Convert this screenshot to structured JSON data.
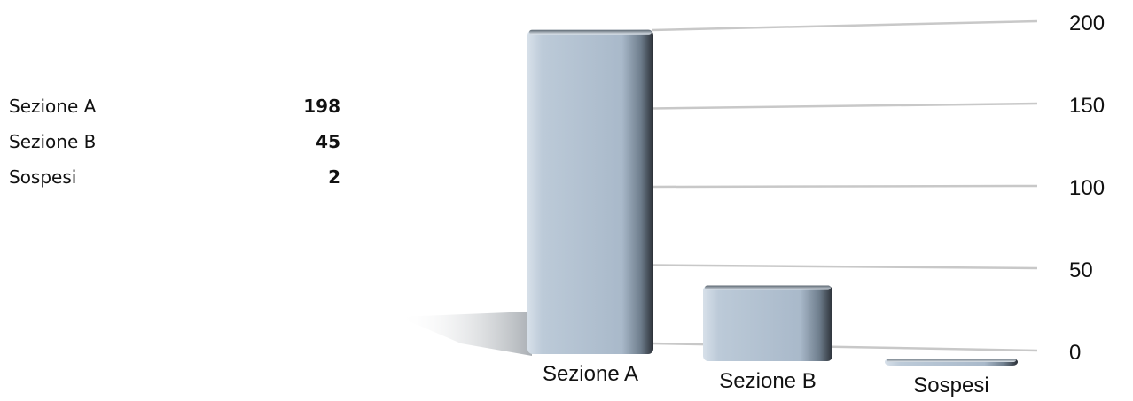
{
  "summary": {
    "rows": [
      {
        "label": "Sezione A",
        "value": "198"
      },
      {
        "label": "Sezione B",
        "value": "45"
      },
      {
        "label": "Sospesi",
        "value": "2"
      }
    ]
  },
  "chart_data": {
    "type": "bar",
    "categories": [
      "Sezione A",
      "Sezione B",
      "Sospesi"
    ],
    "values": [
      198,
      45,
      2
    ],
    "y_ticks": [
      0,
      50,
      100,
      150,
      200
    ],
    "ylim": [
      0,
      200
    ],
    "title": "",
    "xlabel": "",
    "ylabel": "",
    "grid": true,
    "y_axis_side": "right",
    "colors": {
      "bar_top": "#c3d0dc",
      "bar_mid": "#a9b9c9",
      "bar_shadow": "#2c3138",
      "grid": "#c8c8c8"
    }
  }
}
